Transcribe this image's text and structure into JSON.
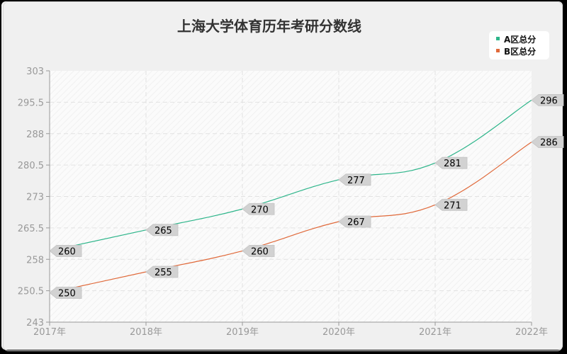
{
  "chart_data": {
    "type": "line",
    "title": "上海大学体育历年考研分数线",
    "xlabel": "",
    "ylabel": "",
    "categories": [
      "2017年",
      "2018年",
      "2019年",
      "2020年",
      "2021年",
      "2022年"
    ],
    "series": [
      {
        "name": "A区总分",
        "color": "#2db58a",
        "values": [
          260,
          265,
          270,
          277,
          281,
          296
        ]
      },
      {
        "name": "B区总分",
        "color": "#e0693a",
        "values": [
          250,
          255,
          260,
          267,
          271,
          286
        ]
      }
    ],
    "ylim": [
      243,
      303
    ],
    "yticks": [
      "303",
      "295.5",
      "288",
      "280.5",
      "273",
      "265.5",
      "258",
      "250.5",
      "243"
    ],
    "grid": true,
    "legend_position": "top-right",
    "smooth": true
  }
}
